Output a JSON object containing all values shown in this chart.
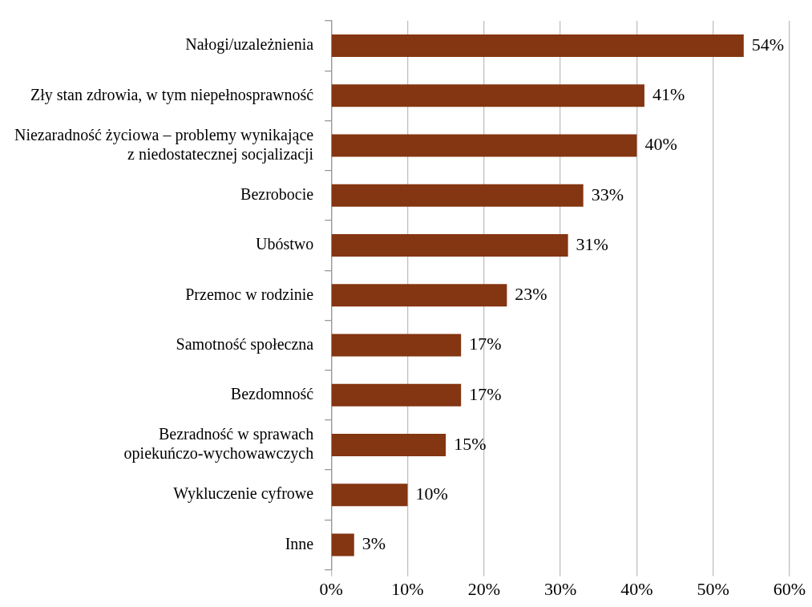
{
  "chart_data": {
    "type": "bar",
    "orientation": "horizontal",
    "categories": [
      "Nałogi/uzależnienia",
      "Zły stan zdrowia, w tym niepełnosprawność",
      "Niezaradność życiowa – problemy wynikające z niedostatecznej socjalizacji",
      "Bezrobocie",
      "Ubóstwo",
      "Przemoc w rodzinie",
      "Samotność społeczna",
      "Bezdomność",
      "Bezradność w sprawach opiekuńczo-wychowawczych",
      "Wykluczenie cyfrowe",
      "Inne"
    ],
    "values": [
      54,
      41,
      40,
      33,
      31,
      23,
      17,
      17,
      15,
      10,
      3
    ],
    "value_labels": [
      "54%",
      "41%",
      "40%",
      "33%",
      "31%",
      "23%",
      "17%",
      "17%",
      "15%",
      "10%",
      "3%"
    ],
    "color": "#843511",
    "xlim": [
      0,
      60
    ],
    "xticks": [
      {
        "value": 0,
        "label": "0%"
      },
      {
        "value": 10,
        "label": "10%"
      },
      {
        "value": 20,
        "label": "20%"
      },
      {
        "value": 30,
        "label": "30%"
      },
      {
        "value": 40,
        "label": "40%"
      },
      {
        "value": 50,
        "label": "50%"
      },
      {
        "value": 60,
        "label": "60%"
      }
    ],
    "grid": "x",
    "legend": false
  }
}
